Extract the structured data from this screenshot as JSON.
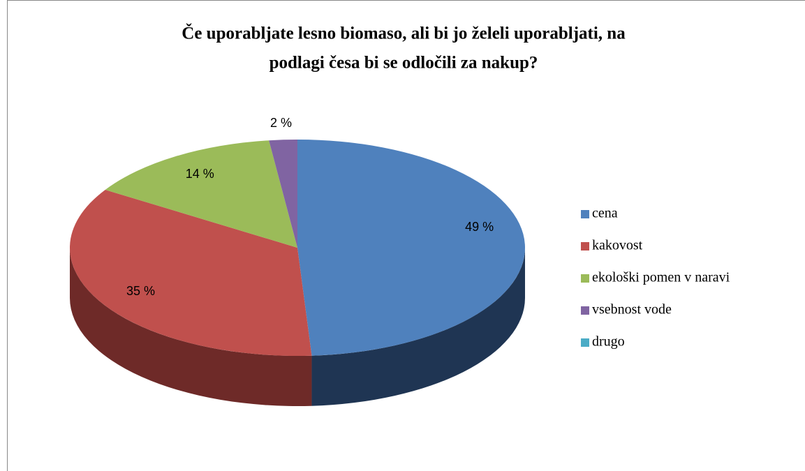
{
  "chart_data": {
    "type": "pie",
    "title": [
      "Če uporabljate  lesno biomaso, ali bi jo želeli uporabljati, na",
      "podlagi česa bi se odločili za nakup?"
    ],
    "categories": [
      "cena",
      "kakovost",
      "ekološki pomen v naravi",
      "vsebnost vode",
      "drugo"
    ],
    "values": [
      49,
      35,
      14,
      2,
      0
    ],
    "value_labels": [
      "49 %",
      "35 %",
      "14 %",
      "2 %",
      null
    ],
    "colors": [
      "#4f81bd",
      "#c0504d",
      "#9bbb59",
      "#8064a2",
      "#4bacc6"
    ],
    "side_colors": [
      "#1f3553",
      "#6e2a28",
      "#5a7030",
      "#4a3a60",
      "#2a6a7a"
    ],
    "legend": "right"
  }
}
